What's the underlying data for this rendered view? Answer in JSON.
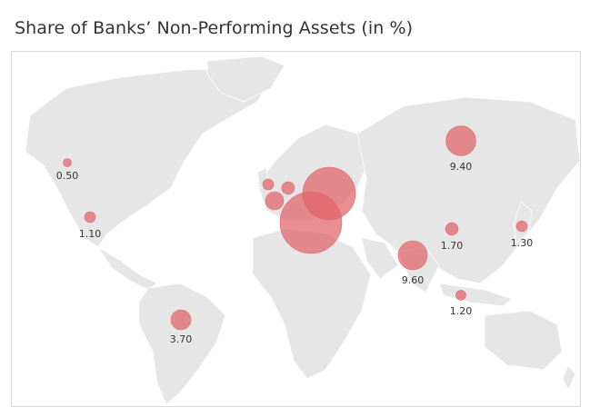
{
  "title": "Share of Banks’ Non-Performing Assets (in %)",
  "colors": {
    "bubble": "#e0626a",
    "land": "#e6e6e6",
    "border": "#ffffff",
    "ocean": "#ffffff"
  },
  "chart_data": {
    "type": "bubble-map",
    "title": "Share of Banks’ Non-Performing Assets (in %)",
    "points": [
      {
        "region": "Canada",
        "value": 0.5,
        "label": "0.50"
      },
      {
        "region": "United States",
        "value": 1.1,
        "label": "1.10"
      },
      {
        "region": "Brazil",
        "value": 3.7,
        "label": "3.70"
      },
      {
        "region": "United Kingdom",
        "value": null,
        "label": ""
      },
      {
        "region": "France",
        "value": null,
        "label": ""
      },
      {
        "region": "Germany",
        "value": null,
        "label": ""
      },
      {
        "region": "Italy",
        "value": null,
        "label": ""
      },
      {
        "region": "Ukraine",
        "value": null,
        "label": ""
      },
      {
        "region": "Russia",
        "value": 9.4,
        "label": "9.40"
      },
      {
        "region": "India",
        "value": 9.6,
        "label": "9.60"
      },
      {
        "region": "China",
        "value": 1.7,
        "label": "1.70"
      },
      {
        "region": "Japan",
        "value": 1.3,
        "label": "1.30"
      },
      {
        "region": "Indonesia",
        "value": 1.2,
        "label": "1.20"
      }
    ]
  }
}
